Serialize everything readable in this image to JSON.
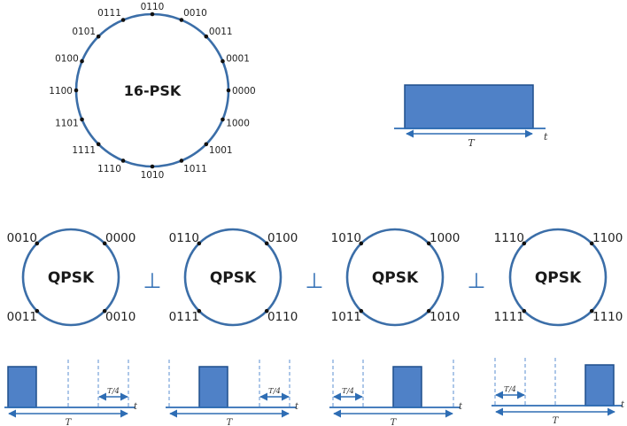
{
  "psk16": {
    "title": "16-PSK",
    "labels": [
      "0110",
      "0010",
      "0011",
      "0001",
      "0000",
      "1000",
      "1001",
      "1011",
      "1010",
      "1110",
      "1111",
      "1101",
      "1100",
      "0100",
      "0101",
      "0111"
    ]
  },
  "pulse": {
    "period_label": "T",
    "time_label": "t"
  },
  "qpsk": [
    {
      "title": "QPSK",
      "top_left": "0010",
      "top_right": "0000",
      "bottom_left": "0011",
      "bottom_right": "0010"
    },
    {
      "title": "QPSK",
      "top_left": "0110",
      "top_right": "0100",
      "bottom_left": "0111",
      "bottom_right": "0110"
    },
    {
      "title": "QPSK",
      "top_left": "1010",
      "top_right": "1000",
      "bottom_left": "1011",
      "bottom_right": "1010"
    },
    {
      "title": "QPSK",
      "top_left": "1110",
      "top_right": "1100",
      "bottom_left": "1111",
      "bottom_right": "1110"
    }
  ],
  "perp_symbol": "⊥",
  "slot_pulses": [
    {
      "quarter_label": "T/4",
      "period_label": "T",
      "time_label": "t"
    },
    {
      "quarter_label": "T/4",
      "period_label": "T",
      "time_label": "t"
    },
    {
      "quarter_label": "T/4",
      "period_label": "T",
      "time_label": "t"
    },
    {
      "quarter_label": "T/4",
      "period_label": "T",
      "time_label": "t"
    }
  ],
  "colors": {
    "accent": "#2e6db4",
    "fill": "#4f81c7",
    "edge": "#1f4e8c"
  }
}
